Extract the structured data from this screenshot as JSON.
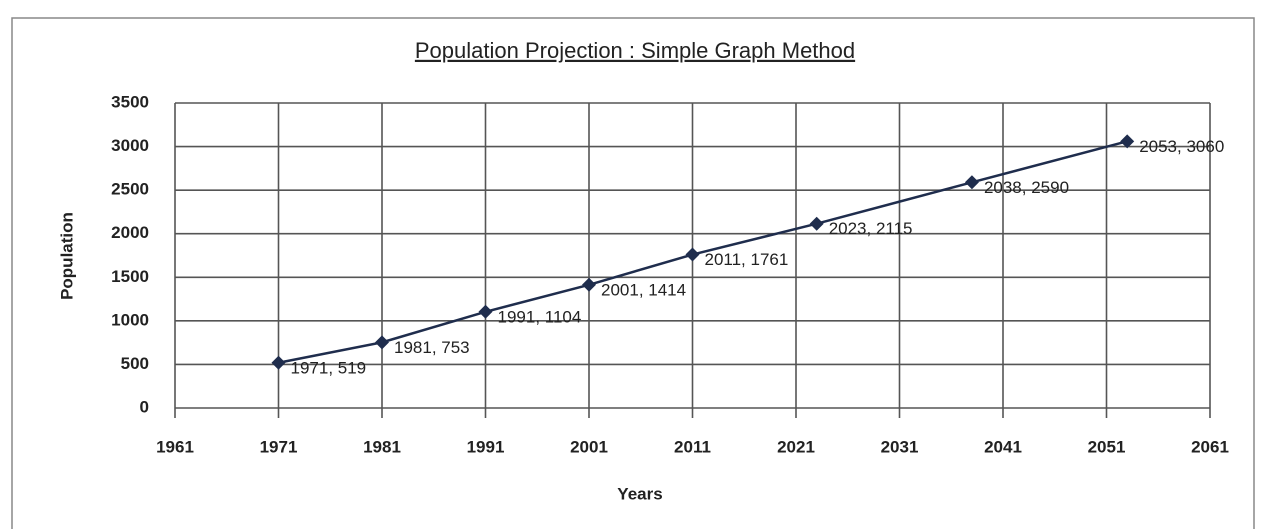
{
  "chart_data": {
    "type": "line",
    "title": "Population Projection : Simple Graph Method",
    "x_label": "Years",
    "y_label": "Population",
    "x": [
      1971,
      1981,
      1991,
      2001,
      2011,
      2023,
      2038,
      2053
    ],
    "values": [
      519,
      753,
      1104,
      1414,
      1761,
      2115,
      2590,
      3060
    ],
    "value_labels": [
      "1971, 519",
      "1981, 753",
      "1991, 1104",
      "2001, 1414",
      "2011, 1761",
      "2023, 2115",
      "2038, 2590",
      "2053, 3060"
    ],
    "color": "#1f2d4d",
    "xlim": [
      1961,
      2061
    ],
    "xticks": [
      1961,
      1971,
      1981,
      1991,
      2001,
      2011,
      2021,
      2031,
      2041,
      2051,
      2061
    ],
    "ylim": [
      0,
      3500
    ],
    "yticks": [
      0,
      500,
      1000,
      1500,
      2000,
      2500,
      3000,
      3500
    ],
    "grid": true
  }
}
